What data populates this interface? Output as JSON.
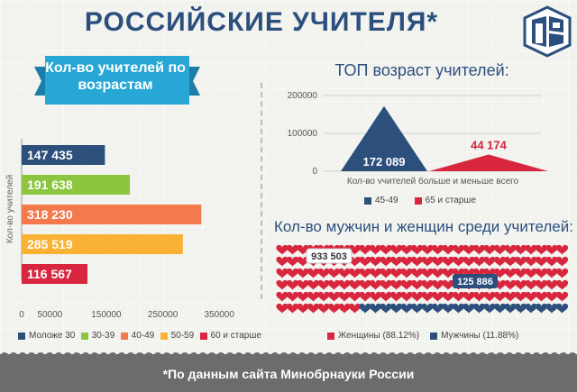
{
  "title": "РОССИЙСКИЕ УЧИТЕЛЯ*",
  "footer": "*По данным сайта Минобрнауки России",
  "colors": {
    "title_blue": "#2b4f7e",
    "navy": "#2c4f7c",
    "green": "#8cc63f",
    "orange": "#f47a4e",
    "yellow": "#f9b233",
    "red": "#d7263d",
    "ribbon": "#27a7d6",
    "footer": "#6c6c6c"
  },
  "chart_data": [
    {
      "type": "bar",
      "orientation": "horizontal",
      "title": "Кол-во учителей по возрастам",
      "ylabel": "Кол-во учителей",
      "categories": [
        "Моложе 30",
        "30-39",
        "40-49",
        "50-59",
        "60 и старше"
      ],
      "values": [
        147435,
        191638,
        318230,
        285519,
        116567
      ],
      "value_labels": [
        "147 435",
        "191 638",
        "318 230",
        "285 519",
        "116 567"
      ],
      "xticks": [
        "0",
        "50000",
        "150000",
        "250000",
        "350000"
      ],
      "xtick_values": [
        0,
        50000,
        150000,
        250000,
        350000
      ],
      "xlim": [
        0,
        380000
      ],
      "colors": [
        "#2c4f7c",
        "#8cc63f",
        "#f47a4e",
        "#f9b233",
        "#d7263d"
      ],
      "legend_position": "bottom"
    },
    {
      "type": "bar",
      "title": "ТОП возраст учителей:",
      "xlabel": "Кол-во учителей больше и меньше всего",
      "categories": [
        "45-49",
        "65 и старше"
      ],
      "values": [
        172089,
        44174
      ],
      "value_labels": [
        "172 089",
        "44 174"
      ],
      "yticks": [
        "0",
        "100000",
        "200000"
      ],
      "ytick_values": [
        0,
        100000,
        200000
      ],
      "ylim": [
        0,
        200000
      ],
      "colors": [
        "#2c4f7c",
        "#d7263d"
      ],
      "legend_position": "bottom"
    },
    {
      "type": "pie",
      "title": "Кол-во мужчин и женщин среди учителей:",
      "categories": [
        "Женщины (88.12%)",
        "Мужчины (11.88%)"
      ],
      "values": [
        933503,
        125886
      ],
      "value_labels": [
        "933 503",
        "125 886"
      ],
      "shares": [
        88.12,
        11.88
      ],
      "colors": [
        "#d7263d",
        "#2c4f7c"
      ],
      "legend_position": "bottom"
    }
  ]
}
